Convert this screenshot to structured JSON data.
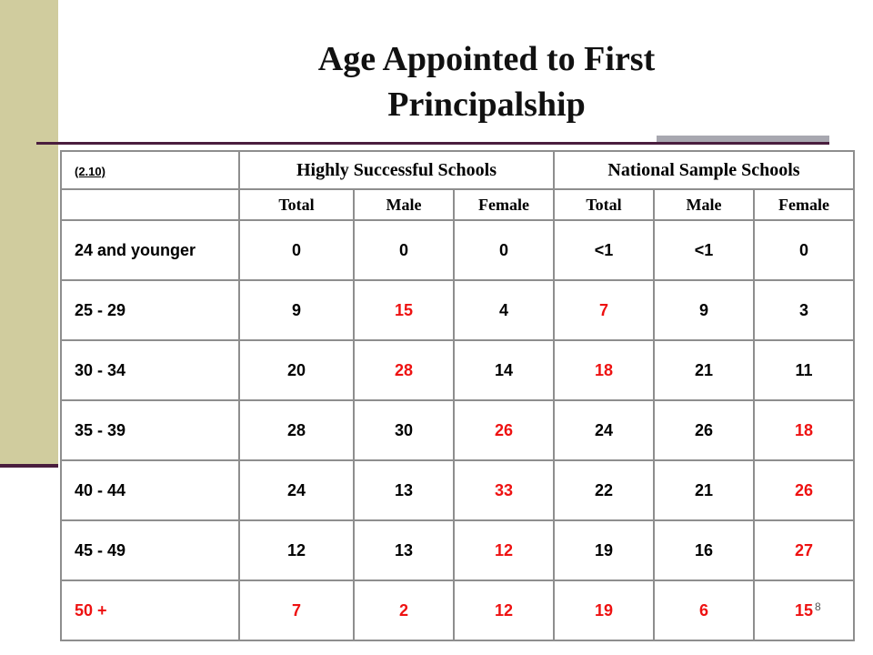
{
  "slide": {
    "title_line1": "Age Appointed to First",
    "title_line2": "Principalship",
    "page_number": "8",
    "accent_color": "#ee1111"
  },
  "table": {
    "corner_label": "(2.10)",
    "group_headers": [
      "Highly Successful Schools",
      "National Sample Schools"
    ],
    "sub_headers": [
      "Total",
      "Male",
      "Female",
      "Total",
      "Male",
      "Female"
    ],
    "rows": [
      {
        "label": "24 and younger",
        "label_red": false,
        "cells": [
          {
            "v": "0",
            "red": false
          },
          {
            "v": "0",
            "red": false
          },
          {
            "v": "0",
            "red": false
          },
          {
            "v": "<1",
            "red": false
          },
          {
            "v": "<1",
            "red": false
          },
          {
            "v": "0",
            "red": false
          }
        ]
      },
      {
        "label": "25 - 29",
        "label_red": false,
        "cells": [
          {
            "v": "9",
            "red": false
          },
          {
            "v": "15",
            "red": true
          },
          {
            "v": "4",
            "red": false
          },
          {
            "v": "7",
            "red": true
          },
          {
            "v": "9",
            "red": false
          },
          {
            "v": "3",
            "red": false
          }
        ]
      },
      {
        "label": "30 - 34",
        "label_red": false,
        "cells": [
          {
            "v": "20",
            "red": false
          },
          {
            "v": "28",
            "red": true
          },
          {
            "v": "14",
            "red": false
          },
          {
            "v": "18",
            "red": true
          },
          {
            "v": "21",
            "red": false
          },
          {
            "v": "11",
            "red": false
          }
        ]
      },
      {
        "label": "35 - 39",
        "label_red": false,
        "cells": [
          {
            "v": "28",
            "red": false
          },
          {
            "v": "30",
            "red": false
          },
          {
            "v": "26",
            "red": true
          },
          {
            "v": "24",
            "red": false
          },
          {
            "v": "26",
            "red": false
          },
          {
            "v": "18",
            "red": true
          }
        ]
      },
      {
        "label": "40 - 44",
        "label_red": false,
        "cells": [
          {
            "v": "24",
            "red": false
          },
          {
            "v": "13",
            "red": false
          },
          {
            "v": "33",
            "red": true
          },
          {
            "v": "22",
            "red": false
          },
          {
            "v": "21",
            "red": false
          },
          {
            "v": "26",
            "red": true
          }
        ]
      },
      {
        "label": "45 - 49",
        "label_red": false,
        "cells": [
          {
            "v": "12",
            "red": false
          },
          {
            "v": "13",
            "red": false
          },
          {
            "v": "12",
            "red": true
          },
          {
            "v": "19",
            "red": false
          },
          {
            "v": "16",
            "red": false
          },
          {
            "v": "27",
            "red": true
          }
        ]
      },
      {
        "label": "50 +",
        "label_red": true,
        "cells": [
          {
            "v": "7",
            "red": true
          },
          {
            "v": "2",
            "red": true
          },
          {
            "v": "12",
            "red": true
          },
          {
            "v": "19",
            "red": true
          },
          {
            "v": "6",
            "red": true
          },
          {
            "v": "15",
            "red": true
          }
        ]
      }
    ]
  }
}
